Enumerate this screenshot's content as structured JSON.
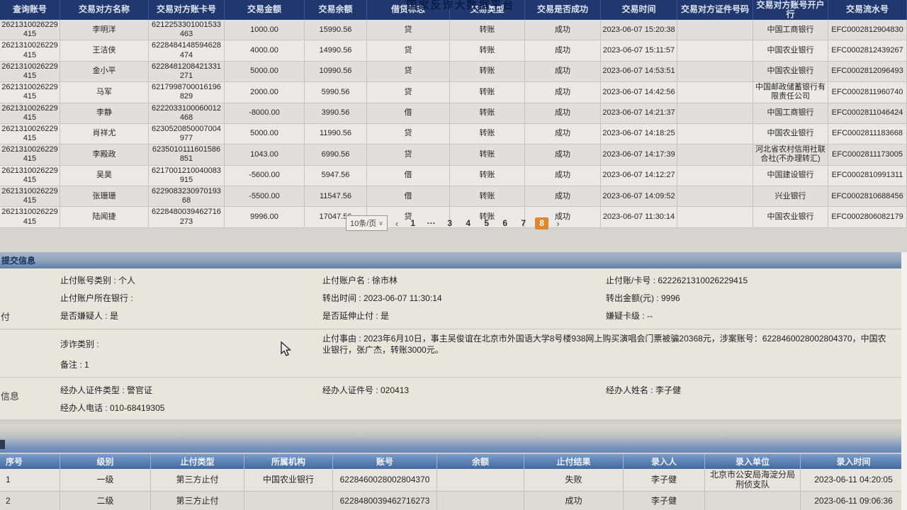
{
  "platform_title": "国家反诈大数据平台",
  "colors": {
    "header_navy": "#20386e",
    "accent_orange": "#e0862f",
    "panel_bar_blue": "#647fa6",
    "bottom_header_blue": "#40699f",
    "panel_bg": "#e8e5dc"
  },
  "transactions_table": {
    "columns": [
      "查询账号",
      "交易对方名称",
      "交易对方账卡号",
      "交易金额",
      "交易余额",
      "借贷标志",
      "交易类型",
      "交易是否成功",
      "交易时间",
      "交易对方证件号码",
      "交易对方账号开户行",
      "交易流水号"
    ],
    "rows": [
      [
        "2621310026229415",
        "李明洋",
        "6212253301001533463",
        "1000.00",
        "15990.56",
        "贷",
        "转账",
        "成功",
        "2023-06-07 15:20:38",
        "",
        "中国工商银行",
        "EFC0002812904830"
      ],
      [
        "2621310026229415",
        "王洁侠",
        "6228484148594628474",
        "4000.00",
        "14990.56",
        "贷",
        "转账",
        "成功",
        "2023-06-07 15:11:57",
        "",
        "中国农业银行",
        "EFC0002812439267"
      ],
      [
        "2621310026229415",
        "金小平",
        "6228481208421331271",
        "5000.00",
        "10990.56",
        "贷",
        "转账",
        "成功",
        "2023-06-07 14:53:51",
        "",
        "中国农业银行",
        "EFC0002812096493"
      ],
      [
        "2621310026229415",
        "马军",
        "6217998700016196829",
        "2000.00",
        "5990.56",
        "贷",
        "转账",
        "成功",
        "2023-06-07 14:42:56",
        "",
        "中国邮政储蓄银行有限责任公司",
        "EFC0002811960740"
      ],
      [
        "2621310026229415",
        "李静",
        "6222033100060012468",
        "-8000.00",
        "3990.56",
        "借",
        "转账",
        "成功",
        "2023-06-07 14:21:37",
        "",
        "中国工商银行",
        "EFC0002811046424"
      ],
      [
        "2621310026229415",
        "肖祥尤",
        "6230520850007004977",
        "5000.00",
        "11990.56",
        "贷",
        "转账",
        "成功",
        "2023-06-07 14:18:25",
        "",
        "中国农业银行",
        "EFC0002811183668"
      ],
      [
        "2621310026229415",
        "李殿政",
        "6235010111601586851",
        "1043.00",
        "6990.56",
        "贷",
        "转账",
        "成功",
        "2023-06-07 14:17:39",
        "",
        "河北省农村信用社联合社(不办理转汇)",
        "EFC0002811173005"
      ],
      [
        "2621310026229415",
        "吴昊",
        "6217001210040083915",
        "-5600.00",
        "5947.56",
        "借",
        "转账",
        "成功",
        "2023-06-07 14:12:27",
        "",
        "中国建设银行",
        "EFC0002810991311"
      ],
      [
        "2621310026229415",
        "张珊珊",
        "622908323097019368",
        "-5500.00",
        "11547.56",
        "借",
        "转账",
        "成功",
        "2023-06-07 14:09:52",
        "",
        "兴业银行",
        "EFC0002810688456"
      ],
      [
        "2621310026229415",
        "陆闻捷",
        "6228480039462716273",
        "9996.00",
        "17047.56",
        "贷",
        "转账",
        "成功",
        "2023-06-07 11:30:14",
        "",
        "中国农业银行",
        "EFC0002806082179"
      ]
    ]
  },
  "pagination": {
    "page_size_label": "10条/页",
    "chevron_down": "∨",
    "prev": "‹",
    "next": "›",
    "pages": [
      "1",
      "···",
      "3",
      "4",
      "5",
      "6",
      "7",
      "8"
    ],
    "current_page": "8"
  },
  "submit_panel": {
    "title": "提交信息",
    "group1": [
      [
        {
          "name": "stop-account-category",
          "label": "止付账号类别",
          "value": "个人"
        },
        {
          "name": "stop-account-name",
          "label": "止付账户名",
          "value": "徐市林"
        },
        {
          "name": "stop-card-number",
          "label": "止付账/卡号",
          "value": "6222621310026229415"
        }
      ],
      [
        {
          "name": "stop-account-bank",
          "label": "止付账户所在银行",
          "value": ""
        },
        {
          "name": "transfer-out-time",
          "label": "转出时间",
          "value": "2023-06-07 11:30:14"
        },
        {
          "name": "transfer-out-amount",
          "label": "转出金额(元)",
          "value": "9996"
        }
      ],
      [
        {
          "name": "is-suspect",
          "label": "是否嫌疑人",
          "value": "是"
        },
        {
          "name": "is-extended-stop",
          "label": "是否延伸止付",
          "value": "是"
        },
        {
          "name": "suspect-card-level",
          "label": "嫌疑卡级",
          "value": "--"
        }
      ]
    ],
    "group2": [
      [
        {
          "name": "fraud-category",
          "label": "涉诈类别",
          "value": ""
        },
        {
          "name": "stop-reason",
          "label": "止付事由",
          "value": "2023年6月10日，事主吴俊谊在北京市外国语大学8号楼938网上购买演唱会门票被骗20368元，涉案账号：6228460028002804370，中国农业银行，张广杰，转账3000元。",
          "span": 2
        }
      ],
      [
        {
          "name": "remark",
          "label": "备注",
          "value": "1"
        }
      ]
    ],
    "group3": [
      [
        {
          "name": "operator-id-type",
          "label": "经办人证件类型",
          "value": "警官证"
        },
        {
          "name": "operator-id-number",
          "label": "经办人证件号",
          "value": "020413"
        },
        {
          "name": "operator-name",
          "label": "经办人姓名",
          "value": "李子健"
        }
      ],
      [
        {
          "name": "operator-phone",
          "label": "经办人电话",
          "value": "010-68419305"
        }
      ]
    ]
  },
  "stop_records_table": {
    "columns": [
      "序号",
      "级别",
      "止付类型",
      "所属机构",
      "账号",
      "余额",
      "止付结果",
      "录入人",
      "录入单位",
      "录入时间"
    ],
    "rows": [
      [
        "1",
        "一级",
        "第三方止付",
        "中国农业银行",
        "6228460028002804370",
        "",
        "失败",
        "李子健",
        "北京市公安局海淀分局刑侦支队",
        "2023-06-11 04:20:05"
      ],
      [
        "2",
        "二级",
        "第三方止付",
        "",
        "6228480039462716273",
        "",
        "成功",
        "李子健",
        "",
        "2023-06-11 09:06:36"
      ]
    ]
  },
  "edge_fragments": {
    "left_mid": "付",
    "left_lower": "信息"
  }
}
